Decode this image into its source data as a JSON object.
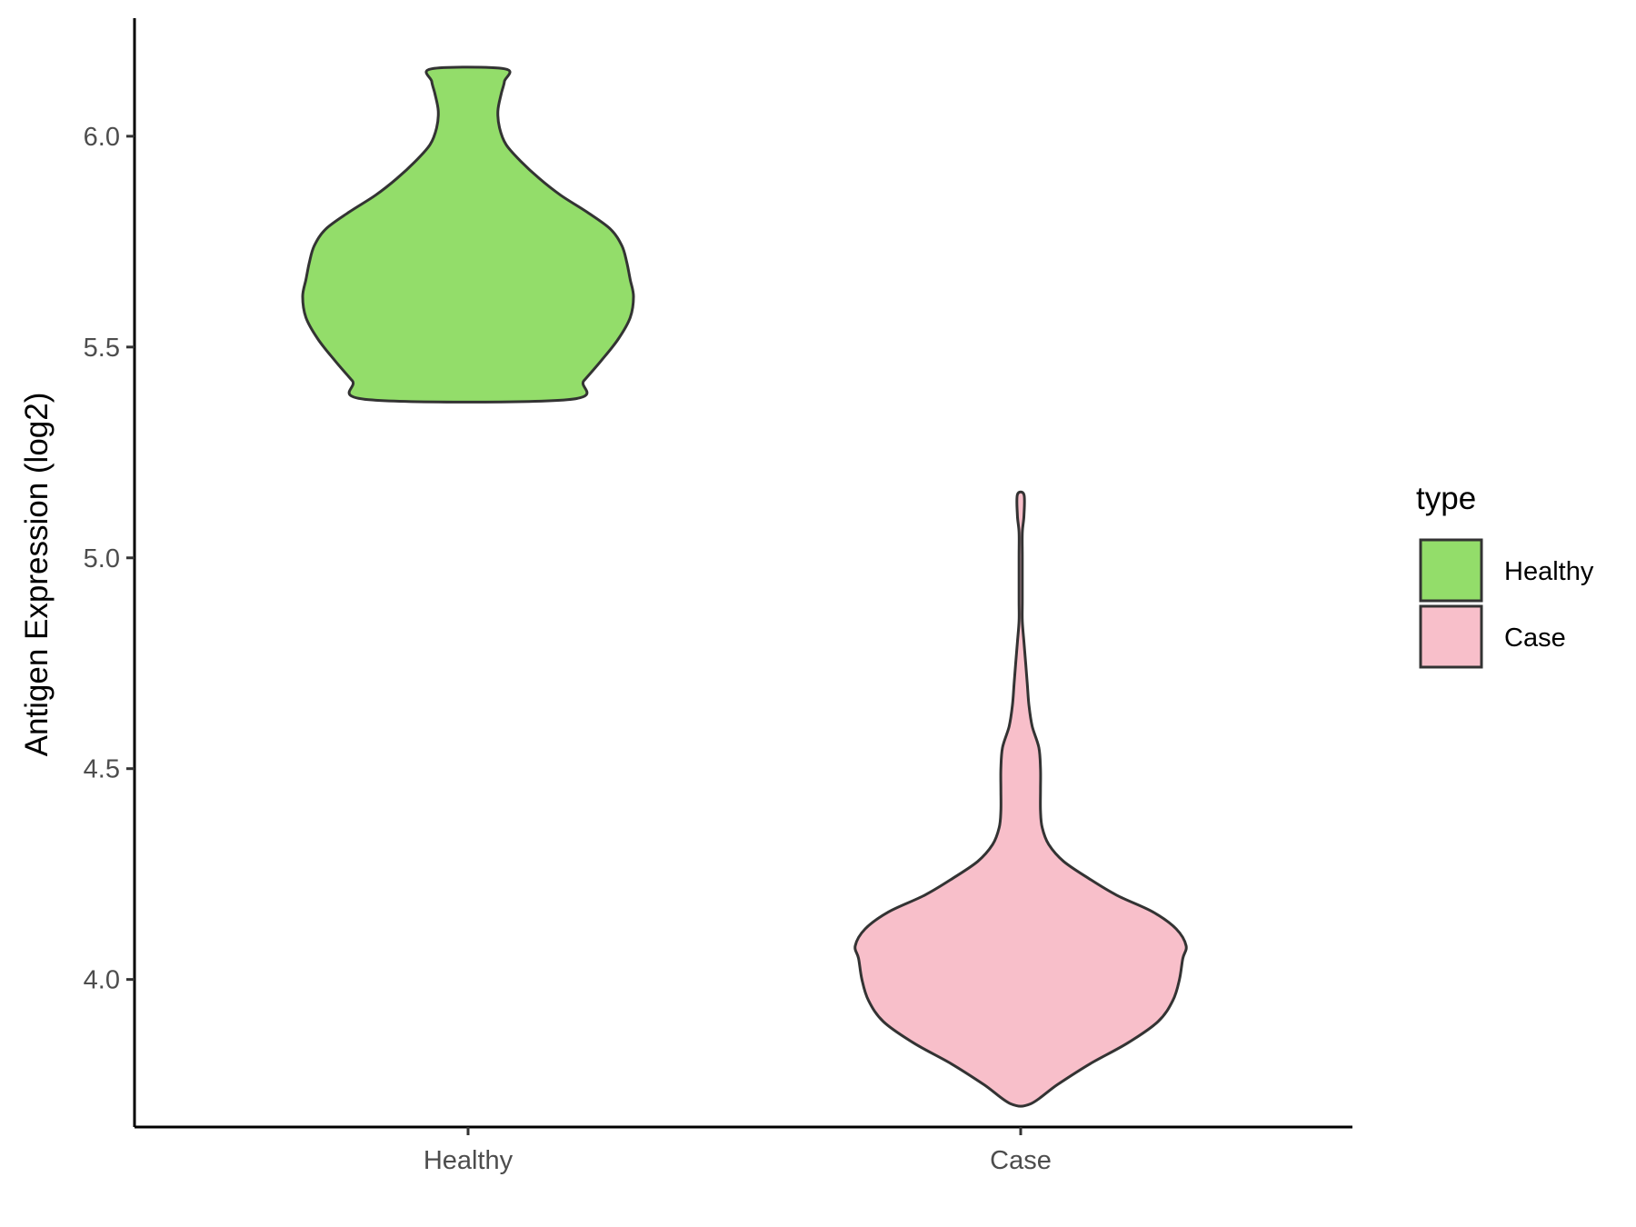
{
  "chart_data": {
    "type": "violin",
    "title": "",
    "xlabel": "",
    "ylabel": "Antigen Expression (log2)",
    "categories": [
      "Healthy",
      "Case"
    ],
    "ylim": [
      3.65,
      6.28
    ],
    "yticks": [
      4.0,
      4.5,
      5.0,
      5.5,
      6.0
    ],
    "ytick_labels": [
      "4.0",
      "4.5",
      "5.0",
      "5.5",
      "6.0"
    ],
    "legend": {
      "title": "type",
      "position": "right",
      "entries": [
        {
          "label": "Healthy",
          "color": "#93dd6a"
        },
        {
          "label": "Case",
          "color": "#f8bfca"
        }
      ]
    },
    "series": [
      {
        "category": "Healthy",
        "color": "#93dd6a",
        "min": 5.375,
        "max": 6.16,
        "density_profile": [
          [
            5.375,
            0.6
          ],
          [
            5.42,
            0.7
          ],
          [
            5.47,
            0.81
          ],
          [
            5.52,
            0.91
          ],
          [
            5.57,
            0.98
          ],
          [
            5.62,
            1.0
          ],
          [
            5.66,
            0.98
          ],
          [
            5.7,
            0.96
          ],
          [
            5.74,
            0.93
          ],
          [
            5.78,
            0.86
          ],
          [
            5.82,
            0.72
          ],
          [
            5.86,
            0.56
          ],
          [
            5.9,
            0.43
          ],
          [
            5.94,
            0.32
          ],
          [
            5.98,
            0.23
          ],
          [
            6.02,
            0.19
          ],
          [
            6.06,
            0.18
          ],
          [
            6.1,
            0.2
          ],
          [
            6.13,
            0.22
          ],
          [
            6.16,
            0.22
          ]
        ]
      },
      {
        "category": "Case",
        "color": "#f8bfca",
        "min": 3.705,
        "max": 5.15,
        "density_profile": [
          [
            3.705,
            0.06
          ],
          [
            3.75,
            0.22
          ],
          [
            3.8,
            0.42
          ],
          [
            3.85,
            0.65
          ],
          [
            3.9,
            0.83
          ],
          [
            3.95,
            0.92
          ],
          [
            4.0,
            0.96
          ],
          [
            4.05,
            0.98
          ],
          [
            4.08,
            1.0
          ],
          [
            4.12,
            0.94
          ],
          [
            4.16,
            0.8
          ],
          [
            4.2,
            0.58
          ],
          [
            4.24,
            0.41
          ],
          [
            4.28,
            0.26
          ],
          [
            4.32,
            0.17
          ],
          [
            4.36,
            0.13
          ],
          [
            4.4,
            0.12
          ],
          [
            4.45,
            0.12
          ],
          [
            4.5,
            0.12
          ],
          [
            4.55,
            0.11
          ],
          [
            4.6,
            0.07
          ],
          [
            4.65,
            0.05
          ],
          [
            4.7,
            0.04
          ],
          [
            4.75,
            0.03
          ],
          [
            4.8,
            0.02
          ],
          [
            4.85,
            0.01
          ],
          [
            4.9,
            0.01
          ],
          [
            5.0,
            0.01
          ],
          [
            5.06,
            0.01
          ],
          [
            5.1,
            0.02
          ],
          [
            5.15,
            0.02
          ]
        ]
      }
    ]
  }
}
